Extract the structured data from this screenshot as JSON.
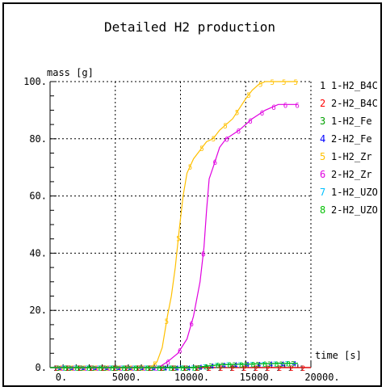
{
  "chart_data": {
    "type": "line",
    "title": "Detailed H2 production",
    "ylabel": "mass [g]",
    "xlabel": "time [s]",
    "xlim": [
      0,
      20000
    ],
    "ylim": [
      0,
      100
    ],
    "x_ticks": [
      0,
      5000,
      10000,
      15000,
      20000
    ],
    "x_tick_labels": [
      "0.",
      "5000.",
      "10000.",
      "15000.",
      "20000."
    ],
    "y_ticks": [
      0,
      20,
      40,
      60,
      80,
      100
    ],
    "y_tick_labels": [
      "0.",
      "20.",
      "40.",
      "60.",
      "80.",
      "100."
    ],
    "grid": true,
    "legend_position": "right",
    "series": [
      {
        "name": "1-H2_B4C",
        "marker": "1",
        "color": "#000000",
        "points": [
          [
            0,
            0
          ],
          [
            20000,
            0
          ]
        ]
      },
      {
        "name": "2-H2_B4C",
        "marker": "2",
        "color": "#ff0000",
        "points": [
          [
            0,
            0
          ],
          [
            20000,
            0
          ]
        ]
      },
      {
        "name": "1-H2_Fe",
        "marker": "3",
        "color": "#00a000",
        "points": [
          [
            0,
            0
          ],
          [
            11000,
            0
          ],
          [
            13000,
            1
          ],
          [
            18000,
            1.5
          ],
          [
            19000,
            1.5
          ]
        ]
      },
      {
        "name": "2-H2_Fe",
        "marker": "4",
        "color": "#0000ff",
        "points": [
          [
            0,
            0
          ],
          [
            11000,
            0
          ],
          [
            13000,
            1
          ],
          [
            18000,
            1.5
          ],
          [
            19000,
            1.5
          ]
        ]
      },
      {
        "name": "1-H2_Zr",
        "marker": "5",
        "color": "#ffc000",
        "points": [
          [
            0,
            0
          ],
          [
            7700,
            0
          ],
          [
            8200,
            2
          ],
          [
            8600,
            7
          ],
          [
            9000,
            18
          ],
          [
            9300,
            25
          ],
          [
            9600,
            35
          ],
          [
            9900,
            48
          ],
          [
            10200,
            60
          ],
          [
            10500,
            68
          ],
          [
            11000,
            73
          ],
          [
            11500,
            76
          ],
          [
            12000,
            79
          ],
          [
            12500,
            80
          ],
          [
            13000,
            83
          ],
          [
            14000,
            87
          ],
          [
            15000,
            94
          ],
          [
            15500,
            97
          ],
          [
            16000,
            99
          ],
          [
            16500,
            100
          ],
          [
            19000,
            100
          ]
        ]
      },
      {
        "name": "2-H2_Zr",
        "marker": "6",
        "color": "#e000e0",
        "points": [
          [
            0,
            0
          ],
          [
            8300,
            0
          ],
          [
            9000,
            2
          ],
          [
            9800,
            5
          ],
          [
            10500,
            10
          ],
          [
            11000,
            18
          ],
          [
            11500,
            30
          ],
          [
            11800,
            42
          ],
          [
            12000,
            55
          ],
          [
            12200,
            66
          ],
          [
            12500,
            70
          ],
          [
            13000,
            77
          ],
          [
            13500,
            80
          ],
          [
            14500,
            83
          ],
          [
            15500,
            87
          ],
          [
            16500,
            90
          ],
          [
            17500,
            92
          ],
          [
            19000,
            92
          ]
        ]
      },
      {
        "name": "1-H2_UZO",
        "marker": "7",
        "color": "#00c0ff",
        "points": [
          [
            0,
            0
          ],
          [
            11000,
            0
          ],
          [
            13000,
            1
          ],
          [
            18000,
            1.5
          ],
          [
            19000,
            1.5
          ]
        ]
      },
      {
        "name": "2-H2_UZO",
        "marker": "8",
        "color": "#00c000",
        "points": [
          [
            0,
            0
          ],
          [
            11000,
            0
          ],
          [
            13000,
            1
          ],
          [
            18000,
            1.5
          ],
          [
            19000,
            1.5
          ]
        ]
      }
    ]
  }
}
